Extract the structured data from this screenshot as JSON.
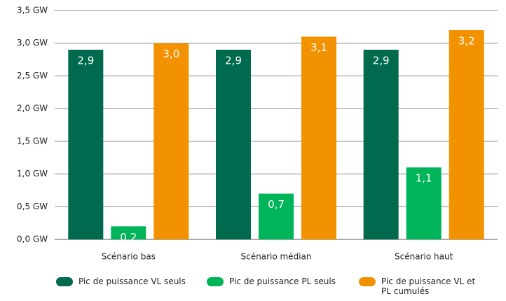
{
  "chart_data": {
    "type": "bar",
    "categories": [
      "Scénario bas",
      "Scénario médian",
      "Scénario haut"
    ],
    "series": [
      {
        "name": "Pic de puissance VL seuls",
        "color": "#006a4e",
        "values": [
          2.9,
          2.9,
          2.9
        ],
        "value_labels": [
          "2,9",
          "2,9",
          "2,9"
        ]
      },
      {
        "name": "Pic de puissance PL seuls",
        "color": "#00b45a",
        "values": [
          0.2,
          0.7,
          1.1
        ],
        "value_labels": [
          "0,2",
          "0,7",
          "1,1"
        ]
      },
      {
        "name": "Pic de puissance VL et PL cumulés",
        "color": "#f39200",
        "values": [
          3.0,
          3.1,
          3.2
        ],
        "value_labels": [
          "3,0",
          "3,1",
          "3,2"
        ]
      }
    ],
    "ylim": [
      0,
      3.5
    ],
    "yticks": [
      {
        "value": 0,
        "label": "0,0 GW"
      },
      {
        "value": 0.5,
        "label": "0,5 GW"
      },
      {
        "value": 1,
        "label": "1,0 GW"
      },
      {
        "value": 1.5,
        "label": "1,5 GW"
      },
      {
        "value": 2,
        "label": "2,0 GW"
      },
      {
        "value": 2.5,
        "label": "2,5 GW"
      },
      {
        "value": 3,
        "label": "3,0 GW"
      },
      {
        "value": 3.5,
        "label": "3,5 GW"
      }
    ],
    "grid": true,
    "legend": "bottom"
  }
}
